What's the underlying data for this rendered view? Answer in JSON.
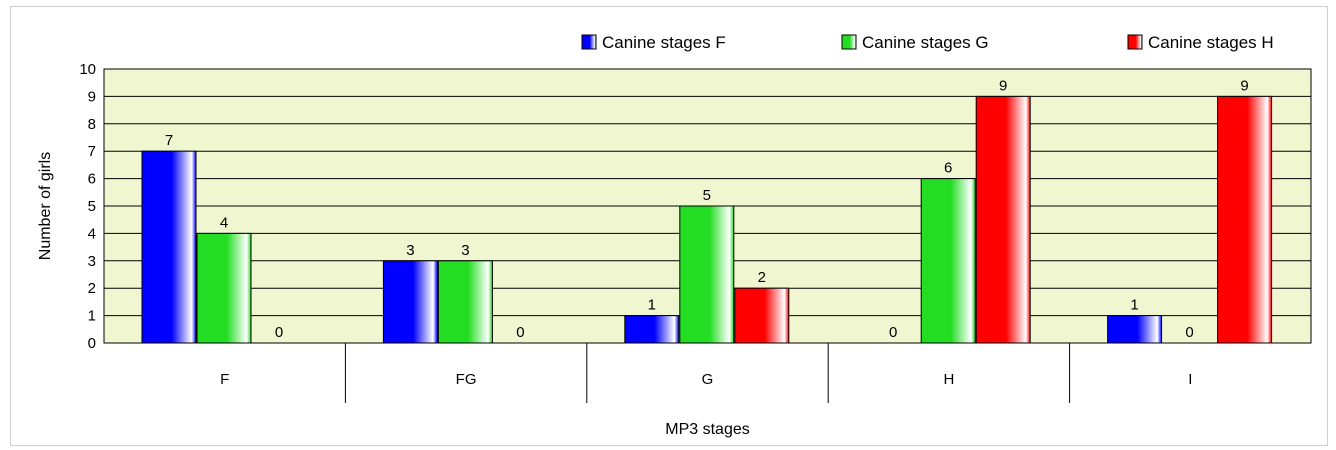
{
  "chart_data": {
    "type": "bar",
    "categories": [
      "F",
      "FG",
      "G",
      "H",
      "I"
    ],
    "series": [
      {
        "name": "Canine stages F",
        "values": [
          7,
          3,
          1,
          0,
          1
        ],
        "color": "#0000ff"
      },
      {
        "name": "Canine stages G",
        "values": [
          4,
          3,
          5,
          6,
          0
        ],
        "color": "#22dd22"
      },
      {
        "name": "Canine stages H",
        "values": [
          0,
          0,
          2,
          9,
          9
        ],
        "color": "#ff0000"
      }
    ],
    "xlabel": "MP3 stages",
    "ylabel": "Number of girls",
    "ylim": [
      0,
      10
    ],
    "yticks": [
      0,
      1,
      2,
      3,
      4,
      5,
      6,
      7,
      8,
      9,
      10
    ],
    "grid": true,
    "plot_background": "#f0f7d0",
    "legend_position": "top"
  }
}
